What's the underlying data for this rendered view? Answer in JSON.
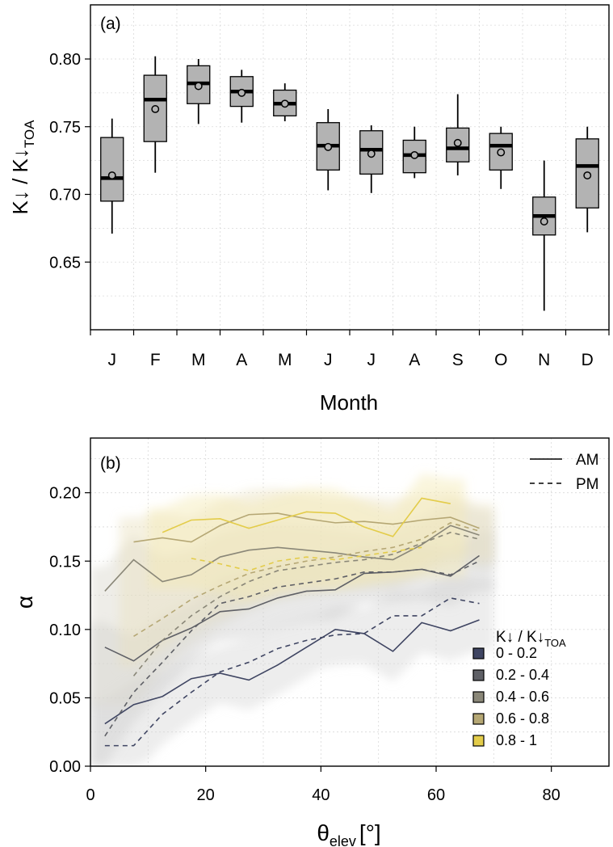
{
  "chart_data": [
    {
      "type": "box",
      "panel_label": "(a)",
      "xlabel": "Month",
      "ylabel_main": "K↓ / K↓",
      "ylabel_sub": "TOA",
      "ylim": [
        0.6,
        0.84
      ],
      "yticks": [
        0.65,
        0.7,
        0.75,
        0.8
      ],
      "ytick_labels": [
        "0.65",
        "0.70",
        "0.75",
        "0.80"
      ],
      "categories": [
        "J",
        "F",
        "M",
        "A",
        "M",
        "J",
        "J",
        "A",
        "S",
        "O",
        "N",
        "D"
      ],
      "box_color": "#b3b3b3",
      "boxes": [
        {
          "low": 0.671,
          "q1": 0.695,
          "median": 0.712,
          "q3": 0.742,
          "high": 0.756,
          "mean": 0.714
        },
        {
          "low": 0.716,
          "q1": 0.739,
          "median": 0.77,
          "q3": 0.788,
          "high": 0.802,
          "mean": 0.763
        },
        {
          "low": 0.752,
          "q1": 0.767,
          "median": 0.782,
          "q3": 0.795,
          "high": 0.8,
          "mean": 0.78
        },
        {
          "low": 0.753,
          "q1": 0.765,
          "median": 0.776,
          "q3": 0.787,
          "high": 0.792,
          "mean": 0.775
        },
        {
          "low": 0.754,
          "q1": 0.758,
          "median": 0.767,
          "q3": 0.777,
          "high": 0.782,
          "mean": 0.767
        },
        {
          "low": 0.703,
          "q1": 0.718,
          "median": 0.736,
          "q3": 0.753,
          "high": 0.763,
          "mean": 0.735
        },
        {
          "low": 0.701,
          "q1": 0.715,
          "median": 0.733,
          "q3": 0.747,
          "high": 0.751,
          "mean": 0.73
        },
        {
          "low": 0.712,
          "q1": 0.716,
          "median": 0.729,
          "q3": 0.74,
          "high": 0.75,
          "mean": 0.729
        },
        {
          "low": 0.714,
          "q1": 0.724,
          "median": 0.734,
          "q3": 0.749,
          "high": 0.774,
          "mean": 0.738
        },
        {
          "low": 0.704,
          "q1": 0.718,
          "median": 0.736,
          "q3": 0.745,
          "high": 0.75,
          "mean": 0.731
        },
        {
          "low": 0.614,
          "q1": 0.67,
          "median": 0.684,
          "q3": 0.698,
          "high": 0.725,
          "mean": 0.68
        },
        {
          "low": 0.672,
          "q1": 0.69,
          "median": 0.721,
          "q3": 0.741,
          "high": 0.75,
          "mean": 0.714
        }
      ]
    },
    {
      "type": "line",
      "panel_label": "(b)",
      "xlabel_main": "θ",
      "xlabel_sub": "elev",
      "xlabel_unit": "[°]",
      "ylabel": "α",
      "xlim": [
        0,
        90
      ],
      "ylim": [
        0,
        0.24
      ],
      "xticks": [
        0,
        20,
        40,
        60,
        80
      ],
      "xtick_labels": [
        "0",
        "20",
        "40",
        "60",
        "80"
      ],
      "yticks": [
        0,
        0.05,
        0.1,
        0.15,
        0.2
      ],
      "ytick_labels": [
        "0.00",
        "0.05",
        "0.10",
        "0.15",
        "0.20"
      ],
      "legend_linetype": [
        {
          "label": "AM",
          "dash": false
        },
        {
          "label": "PM",
          "dash": true
        }
      ],
      "legend_fill_title_main": "K↓ / K↓",
      "legend_fill_title_sub": "TOA",
      "series": [
        {
          "name": "0 - 0.2",
          "color": "#3f4562",
          "am_x": [
            2.5,
            7.5,
            12.5,
            17.5,
            22.5,
            27.5,
            32.5,
            37.5,
            42.5,
            47.5,
            52.5,
            57.5,
            62.5,
            67.5
          ],
          "am_y": [
            0.031,
            0.045,
            0.051,
            0.064,
            0.068,
            0.063,
            0.074,
            0.087,
            0.1,
            0.097,
            0.084,
            0.105,
            0.099,
            0.107
          ],
          "pm_x": [
            2.5,
            7.5,
            12.5,
            17.5,
            22.5,
            27.5,
            32.5,
            37.5,
            42.5,
            47.5,
            52.5,
            57.5,
            62.5,
            67.5
          ],
          "pm_y": [
            0.015,
            0.015,
            0.038,
            0.054,
            0.069,
            0.076,
            0.086,
            0.092,
            0.096,
            0.097,
            0.11,
            0.11,
            0.123,
            0.119
          ]
        },
        {
          "name": "0.2 - 0.4",
          "color": "#5f6066",
          "am_x": [
            2.5,
            7.5,
            12.5,
            17.5,
            22.5,
            27.5,
            32.5,
            37.5,
            42.5,
            47.5,
            52.5,
            57.5,
            62.5,
            67.5
          ],
          "am_y": [
            0.087,
            0.077,
            0.092,
            0.101,
            0.113,
            0.115,
            0.123,
            0.128,
            0.129,
            0.141,
            0.142,
            0.144,
            0.139,
            0.154
          ],
          "pm_x": [
            2.5,
            7.5,
            12.5,
            17.5,
            22.5,
            27.5,
            32.5,
            37.5,
            42.5,
            47.5,
            52.5,
            57.5,
            62.5,
            67.5
          ],
          "pm_y": [
            0.022,
            0.054,
            0.076,
            0.099,
            0.119,
            0.124,
            0.131,
            0.134,
            0.137,
            0.142,
            0.142,
            0.144,
            0.14,
            0.15
          ]
        },
        {
          "name": "0.4 - 0.6",
          "color": "#8a8778",
          "am_x": [
            2.5,
            7.5,
            12.5,
            17.5,
            22.5,
            27.5,
            32.5,
            37.5,
            42.5,
            47.5,
            52.5,
            57.5,
            62.5,
            67.5
          ],
          "am_y": [
            0.128,
            0.151,
            0.135,
            0.14,
            0.153,
            0.158,
            0.16,
            0.158,
            0.156,
            0.153,
            0.151,
            0.162,
            0.176,
            0.169
          ],
          "pm_x": [
            7.5,
            12.5,
            17.5,
            22.5,
            27.5,
            32.5,
            37.5,
            42.5,
            47.5,
            52.5,
            57.5,
            62.5,
            67.5
          ],
          "pm_y": [
            0.066,
            0.092,
            0.11,
            0.124,
            0.135,
            0.143,
            0.146,
            0.149,
            0.151,
            0.155,
            0.163,
            0.171,
            0.166
          ]
        },
        {
          "name": "0.6 - 0.8",
          "color": "#b5a774",
          "am_x": [
            7.5,
            12.5,
            17.5,
            22.5,
            27.5,
            32.5,
            37.5,
            42.5,
            47.5,
            52.5,
            57.5,
            62.5,
            67.5
          ],
          "am_y": [
            0.164,
            0.167,
            0.164,
            0.176,
            0.184,
            0.185,
            0.181,
            0.178,
            0.179,
            0.177,
            0.18,
            0.182,
            0.174
          ],
          "pm_x": [
            7.5,
            12.5,
            17.5,
            22.5,
            27.5,
            32.5,
            37.5,
            42.5,
            47.5,
            52.5,
            57.5,
            62.5,
            67.5
          ],
          "pm_y": [
            0.095,
            0.108,
            0.122,
            0.132,
            0.141,
            0.146,
            0.15,
            0.153,
            0.157,
            0.16,
            0.166,
            0.178,
            0.172
          ]
        },
        {
          "name": "0.8 - 1",
          "color": "#e3cc4a",
          "am_x": [
            12.5,
            17.5,
            22.5,
            27.5,
            32.5,
            37.5,
            42.5,
            47.5,
            52.5,
            57.5,
            62.5
          ],
          "am_y": [
            0.171,
            0.18,
            0.181,
            0.174,
            0.18,
            0.186,
            0.185,
            0.175,
            0.168,
            0.196,
            0.192
          ],
          "pm_x": [
            17.5,
            22.5,
            27.5,
            32.5,
            37.5,
            42.5,
            47.5,
            52.5,
            57.5
          ],
          "pm_y": [
            0.152,
            0.148,
            0.143,
            0.15,
            0.153,
            0.151,
            0.154,
            0.157,
            0.16
          ]
        }
      ]
    }
  ]
}
